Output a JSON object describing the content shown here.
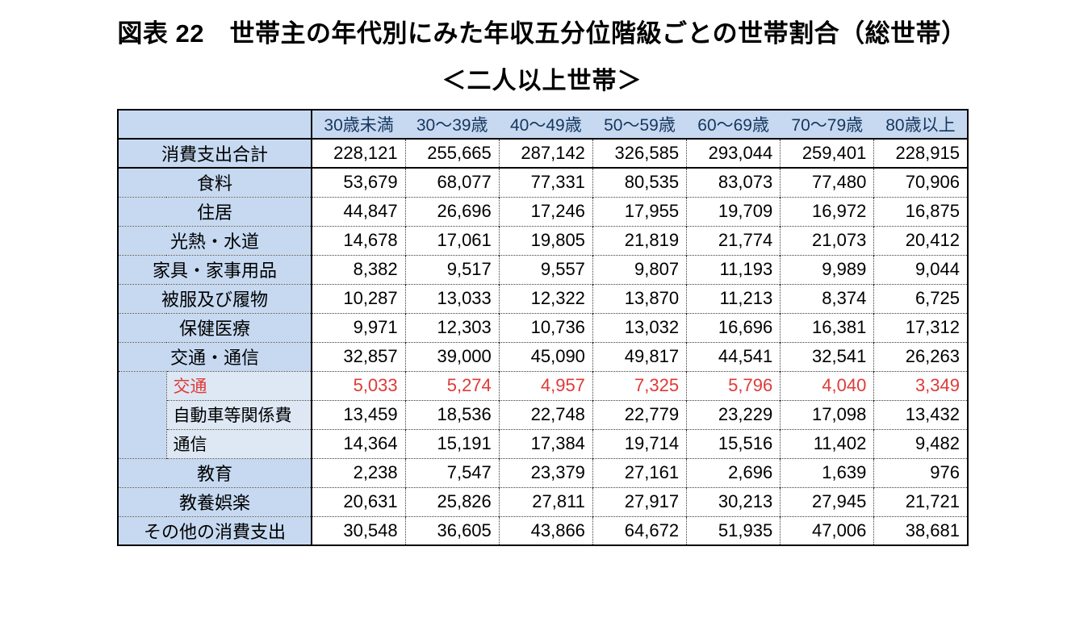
{
  "title": {
    "line1": "図表 22　世帯主の年代別にみた年収五分位階級ごとの世帯割合（総世帯）",
    "line2": "＜二人以上世帯＞"
  },
  "chart_data": {
    "type": "table",
    "title": "図表 22　世帯主の年代別にみた年収五分位階級ごとの世帯割合（総世帯）",
    "subtitle": "＜二人以上世帯＞",
    "columns": [
      "30歳未満",
      "30～39歳",
      "40～49歳",
      "50～59歳",
      "60～69歳",
      "70～79歳",
      "80歳以上"
    ],
    "rows": [
      {
        "label": "消費支出合計",
        "type": "total",
        "red": false,
        "values": [
          "228,121",
          "255,665",
          "287,142",
          "326,585",
          "293,044",
          "259,401",
          "228,915"
        ]
      },
      {
        "label": "食料",
        "type": "main",
        "red": false,
        "values": [
          "53,679",
          "68,077",
          "77,331",
          "80,535",
          "83,073",
          "77,480",
          "70,906"
        ]
      },
      {
        "label": "住居",
        "type": "main",
        "red": false,
        "values": [
          "44,847",
          "26,696",
          "17,246",
          "17,955",
          "19,709",
          "16,972",
          "16,875"
        ]
      },
      {
        "label": "光熱・水道",
        "type": "main",
        "red": false,
        "values": [
          "14,678",
          "17,061",
          "19,805",
          "21,819",
          "21,774",
          "21,073",
          "20,412"
        ]
      },
      {
        "label": "家具・家事用品",
        "type": "main",
        "red": false,
        "values": [
          "8,382",
          "9,517",
          "9,557",
          "9,807",
          "11,193",
          "9,989",
          "9,044"
        ]
      },
      {
        "label": "被服及び履物",
        "type": "main",
        "red": false,
        "values": [
          "10,287",
          "13,033",
          "12,322",
          "13,870",
          "11,213",
          "8,374",
          "6,725"
        ]
      },
      {
        "label": "保健医療",
        "type": "main",
        "red": false,
        "values": [
          "9,971",
          "12,303",
          "10,736",
          "13,032",
          "16,696",
          "16,381",
          "17,312"
        ]
      },
      {
        "label": "交通・通信",
        "type": "main",
        "red": false,
        "values": [
          "32,857",
          "39,000",
          "45,090",
          "49,817",
          "44,541",
          "32,541",
          "26,263"
        ]
      },
      {
        "label": "交通",
        "type": "sub",
        "red": true,
        "values": [
          "5,033",
          "5,274",
          "4,957",
          "7,325",
          "5,796",
          "4,040",
          "3,349"
        ]
      },
      {
        "label": "自動車等関係費",
        "type": "sub",
        "red": false,
        "values": [
          "13,459",
          "18,536",
          "22,748",
          "22,779",
          "23,229",
          "17,098",
          "13,432"
        ]
      },
      {
        "label": "通信",
        "type": "sub",
        "red": false,
        "values": [
          "14,364",
          "15,191",
          "17,384",
          "19,714",
          "15,516",
          "11,402",
          "9,482"
        ]
      },
      {
        "label": "教育",
        "type": "main",
        "red": false,
        "values": [
          "2,238",
          "7,547",
          "23,379",
          "27,161",
          "2,696",
          "1,639",
          "976"
        ]
      },
      {
        "label": "教養娯楽",
        "type": "main",
        "red": false,
        "values": [
          "20,631",
          "25,826",
          "27,811",
          "27,917",
          "30,213",
          "27,945",
          "21,721"
        ]
      },
      {
        "label": "その他の消費支出",
        "type": "main",
        "red": false,
        "values": [
          "30,548",
          "36,605",
          "43,866",
          "64,672",
          "51,935",
          "47,006",
          "38,681"
        ]
      }
    ]
  },
  "colors": {
    "table_header_bg": "#c6d9f1",
    "sub_row_bg": "#dde8f4",
    "highlight_red": "#df3a38",
    "header_text": "#17365d",
    "border_black": "#000000",
    "dot_gray": "#3c3c3c"
  }
}
